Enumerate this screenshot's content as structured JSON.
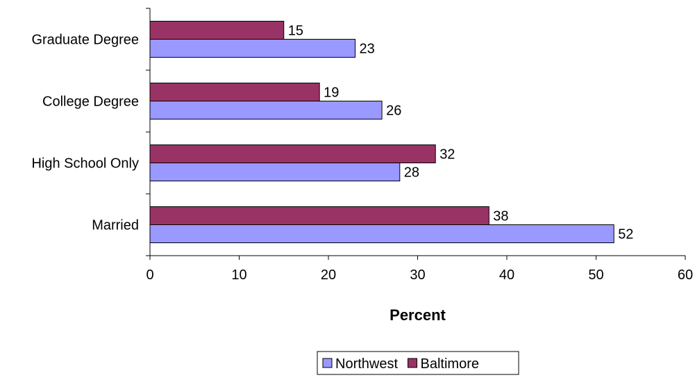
{
  "chart_data": {
    "type": "bar",
    "orientation": "horizontal",
    "categories": [
      "Married",
      "High School Only",
      "College Degree",
      "Graduate Degree"
    ],
    "series": [
      {
        "name": "Northwest",
        "values": [
          52,
          28,
          26,
          23
        ],
        "color": "#9999ff"
      },
      {
        "name": "Baltimore",
        "values": [
          38,
          32,
          19,
          15
        ],
        "color": "#993366"
      }
    ],
    "xlabel": "Percent",
    "xlim": [
      0,
      60
    ],
    "xticks": [
      0,
      10,
      20,
      30,
      40,
      50,
      60
    ],
    "grid": false,
    "legend_position": "bottom"
  }
}
